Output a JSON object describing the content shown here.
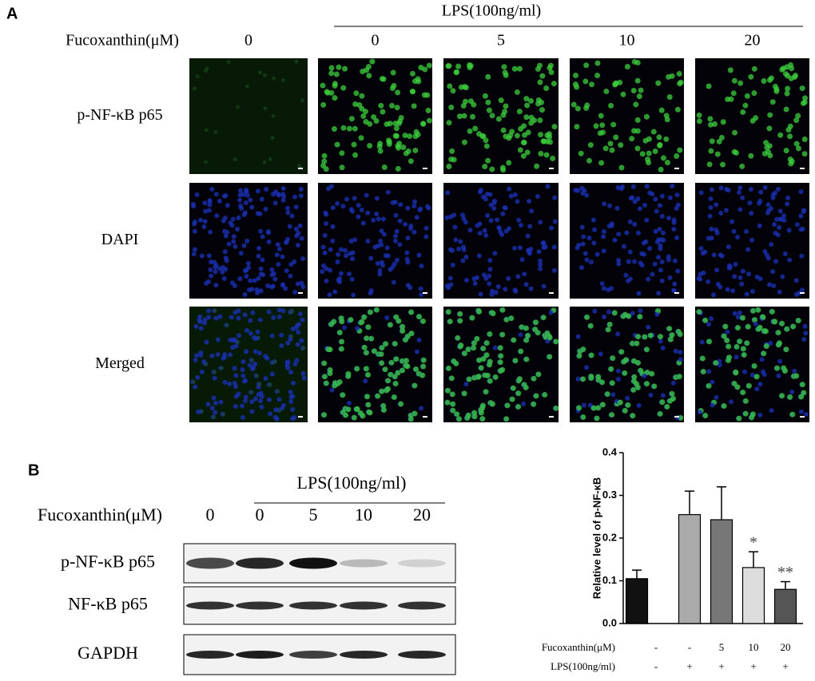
{
  "panel_a": {
    "label": "A",
    "lps_header": "LPS(100ng/ml)",
    "fucoxanthin_label": "Fucoxanthin(μM)",
    "columns": [
      "0",
      "0",
      "5",
      "10",
      "20"
    ],
    "rows": [
      "p-NF-κB p65",
      "DAPI",
      "Merged"
    ]
  },
  "panel_b": {
    "label": "B",
    "lps_header": "LPS(100ng/ml)",
    "fucoxanthin_label": "Fucoxanthin(μM)",
    "lanes": [
      "0",
      "0",
      "5",
      "10",
      "20"
    ],
    "rows": [
      "p-NF-κB p65",
      "NF-κB p65",
      "GAPDH"
    ]
  },
  "chart_data": {
    "type": "bar",
    "ylabel": "Relative level of p-NF-κB",
    "values": [
      0.105,
      0.255,
      0.243,
      0.131,
      0.08
    ],
    "errors": [
      0.02,
      0.055,
      0.077,
      0.037,
      0.018
    ],
    "colors": [
      "#111111",
      "#aaaaaa",
      "#777777",
      "#dddddd",
      "#555555"
    ],
    "value_annotations": [
      null,
      null,
      null,
      "*",
      "**"
    ],
    "ylim": [
      0,
      0.4
    ],
    "yticks": [
      {
        "value": 0,
        "label": "0.0"
      },
      0.1,
      0.2,
      0.3,
      0.4
    ],
    "fucoxanthin_row": {
      "label": "Fucoxanthin(μM)",
      "values": [
        "-",
        "-",
        "5",
        "10",
        "20"
      ]
    },
    "lps_row": {
      "label": "LPS(100ng/ml)",
      "values": [
        "-",
        "+",
        "+",
        "+",
        "+"
      ]
    }
  }
}
